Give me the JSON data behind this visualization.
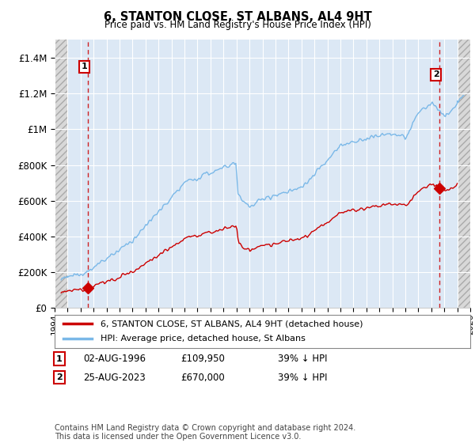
{
  "title": "6, STANTON CLOSE, ST ALBANS, AL4 9HT",
  "subtitle": "Price paid vs. HM Land Registry's House Price Index (HPI)",
  "hpi_color": "#7ab8e8",
  "price_color": "#cc0000",
  "bg_color": "#dce8f5",
  "hatch_bg": "#e0e0e0",
  "point1_year": 1996.58,
  "point1_price": 109950,
  "point2_year": 2023.65,
  "point2_price": 670000,
  "point1_note": "39% ↓ HPI",
  "point2_note": "39% ↓ HPI",
  "point1_date": "02-AUG-1996",
  "point2_date": "25-AUG-2023",
  "legend_line1": "6, STANTON CLOSE, ST ALBANS, AL4 9HT (detached house)",
  "legend_line2": "HPI: Average price, detached house, St Albans",
  "footer": "Contains HM Land Registry data © Crown copyright and database right 2024.\nThis data is licensed under the Open Government Licence v3.0.",
  "ylim": [
    0,
    1500000
  ],
  "yticks": [
    0,
    200000,
    400000,
    600000,
    800000,
    1000000,
    1200000,
    1400000
  ],
  "xlim_start": 1994.0,
  "xlim_end": 2026.0,
  "hatch_left_end": 1995.0,
  "hatch_right_start": 2025.08
}
